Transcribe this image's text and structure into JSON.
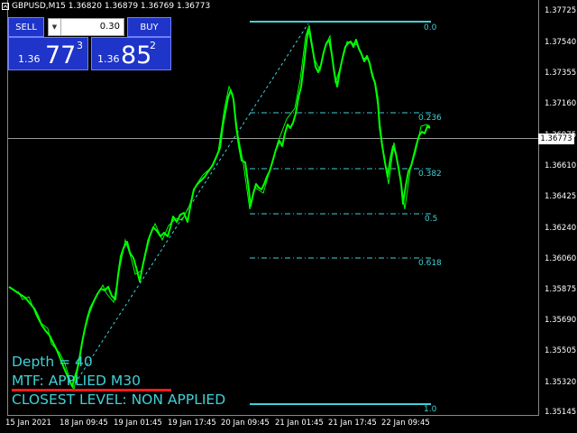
{
  "header": {
    "symbol_info": "GBPUSD,M15  1.36820 1.36879 1.36769 1.36773"
  },
  "trade_panel": {
    "sell_label": "SELL",
    "buy_label": "BUY",
    "lot_value": "0.30",
    "sell_price": {
      "small": "1.36",
      "big": "77",
      "sup": "3"
    },
    "buy_price": {
      "small": "1.36",
      "big": "85",
      "sup": "2"
    }
  },
  "y_axis": {
    "ticks": [
      "1.37725",
      "1.37540",
      "1.37355",
      "1.37160",
      "1.36975",
      "1.36610",
      "1.36425",
      "1.36240",
      "1.36060",
      "1.35875",
      "1.35690",
      "1.35505",
      "1.35320",
      "1.35145"
    ],
    "current_price": "1.36773"
  },
  "x_axis": {
    "ticks": [
      "15 Jan 2021",
      "18 Jan 09:45",
      "19 Jan 01:45",
      "19 Jan 17:45",
      "20 Jan 09:45",
      "21 Jan 01:45",
      "21 Jan 17:45",
      "22 Jan 09:45"
    ]
  },
  "fib_levels": [
    "0.0",
    "0.236",
    "0.382",
    "0.5",
    "0.618",
    "1.0"
  ],
  "info": {
    "depth": "Depth = 40",
    "mtf": "MTF: APPLIED  M30",
    "closest": "CLOSEST LEVEL: NON APPLIED"
  },
  "colors": {
    "candles": "#00ff00",
    "fib": "#3fd1d6",
    "panel": "#1f34c8",
    "underline": "#ff1a1a"
  }
}
